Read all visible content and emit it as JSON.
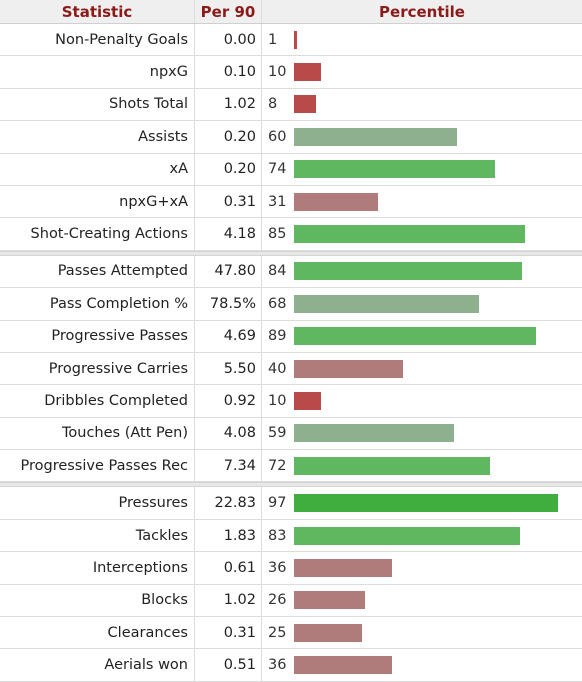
{
  "header": {
    "statistic": "Statistic",
    "per90": "Per 90",
    "percentile": "Percentile"
  },
  "chart_data": {
    "type": "bar",
    "groups": [
      [
        {
          "stat": "Non-Penalty Goals",
          "per90": "0.00",
          "percentile": 1
        },
        {
          "stat": "npxG",
          "per90": "0.10",
          "percentile": 10
        },
        {
          "stat": "Shots Total",
          "per90": "1.02",
          "percentile": 8
        },
        {
          "stat": "Assists",
          "per90": "0.20",
          "percentile": 60
        },
        {
          "stat": "xA",
          "per90": "0.20",
          "percentile": 74
        },
        {
          "stat": "npxG+xA",
          "per90": "0.31",
          "percentile": 31
        },
        {
          "stat": "Shot-Creating Actions",
          "per90": "4.18",
          "percentile": 85
        }
      ],
      [
        {
          "stat": "Passes Attempted",
          "per90": "47.80",
          "percentile": 84
        },
        {
          "stat": "Pass Completion %",
          "per90": "78.5%",
          "percentile": 68
        },
        {
          "stat": "Progressive Passes",
          "per90": "4.69",
          "percentile": 89
        },
        {
          "stat": "Progressive Carries",
          "per90": "5.50",
          "percentile": 40
        },
        {
          "stat": "Dribbles Completed",
          "per90": "0.92",
          "percentile": 10
        },
        {
          "stat": "Touches (Att Pen)",
          "per90": "4.08",
          "percentile": 59
        },
        {
          "stat": "Progressive Passes Rec",
          "per90": "7.34",
          "percentile": 72
        }
      ],
      [
        {
          "stat": "Pressures",
          "per90": "22.83",
          "percentile": 97
        },
        {
          "stat": "Tackles",
          "per90": "1.83",
          "percentile": 83
        },
        {
          "stat": "Interceptions",
          "per90": "0.61",
          "percentile": 36
        },
        {
          "stat": "Blocks",
          "per90": "1.02",
          "percentile": 26
        },
        {
          "stat": "Clearances",
          "per90": "0.31",
          "percentile": 25
        },
        {
          "stat": "Aerials won",
          "per90": "0.51",
          "percentile": 36
        }
      ]
    ],
    "xlim": [
      0,
      100
    ],
    "colors": {
      "very_low": "#b94a4a",
      "low": "#b07b7b",
      "mid": "#8fb08f",
      "high": "#5fb85f",
      "very_high": "#3fae3f"
    }
  }
}
